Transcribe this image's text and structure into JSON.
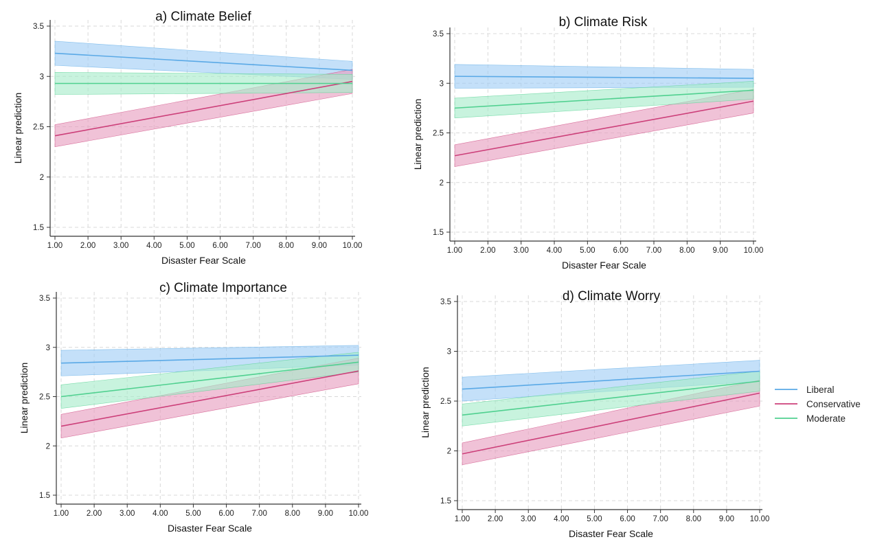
{
  "colors": {
    "liberal": "#5aa9e6",
    "liberal_fill": "#9fcdf5",
    "conservative": "#cc3f79",
    "conservative_fill": "#e69cbf",
    "moderate": "#4fd08f",
    "moderate_fill": "#a6ecc9",
    "grid": "#d8d8d8",
    "axis": "#333333"
  },
  "legend": {
    "items": [
      {
        "label": "Liberal",
        "series": "liberal"
      },
      {
        "label": "Conservative",
        "series": "conservative"
      },
      {
        "label": "Moderate",
        "series": "moderate"
      }
    ]
  },
  "chart_data": [
    {
      "type": "line",
      "title": "a) Climate Belief",
      "xlabel": "Disaster Fear Scale",
      "ylabel": "Linear prediction",
      "x_ticks": [
        "1.00",
        "2.00",
        "3.00",
        "4.00",
        "5.00",
        "6.00",
        "7.00",
        "8.00",
        "9.00",
        "10.00"
      ],
      "y_ticks": [
        "1.5",
        "2",
        "2.5",
        "3",
        "3.5"
      ],
      "xlim": [
        1,
        10
      ],
      "ylim": [
        1.5,
        3.5
      ],
      "grid": true,
      "series": [
        {
          "name": "Liberal",
          "key": "liberal",
          "x": [
            1,
            10
          ],
          "y": [
            3.23,
            3.06
          ],
          "lower": [
            3.11,
            2.97
          ],
          "upper": [
            3.35,
            3.15
          ]
        },
        {
          "name": "Conservative",
          "key": "conservative",
          "x": [
            1,
            10
          ],
          "y": [
            2.41,
            2.95
          ],
          "lower": [
            2.3,
            2.83
          ],
          "upper": [
            2.52,
            3.07
          ]
        },
        {
          "name": "Moderate",
          "key": "moderate",
          "x": [
            1,
            10
          ],
          "y": [
            2.93,
            2.93
          ],
          "lower": [
            2.82,
            2.84
          ],
          "upper": [
            3.04,
            3.02
          ]
        }
      ]
    },
    {
      "type": "line",
      "title": "b) Climate Risk",
      "xlabel": "Disaster Fear Scale",
      "ylabel": "Linear prediction",
      "x_ticks": [
        "1.00",
        "2.00",
        "3.00",
        "4.00",
        "5.00",
        "6.00",
        "7.00",
        "8.00",
        "9.00",
        "10.00"
      ],
      "y_ticks": [
        "1.5",
        "2",
        "2.5",
        "3",
        "3.5"
      ],
      "xlim": [
        1,
        10
      ],
      "ylim": [
        1.5,
        3.5
      ],
      "grid": true,
      "series": [
        {
          "name": "Liberal",
          "key": "liberal",
          "x": [
            1,
            10
          ],
          "y": [
            3.07,
            3.05
          ],
          "lower": [
            2.95,
            2.96
          ],
          "upper": [
            3.19,
            3.14
          ]
        },
        {
          "name": "Conservative",
          "key": "conservative",
          "x": [
            1,
            10
          ],
          "y": [
            2.27,
            2.82
          ],
          "lower": [
            2.16,
            2.7
          ],
          "upper": [
            2.38,
            2.94
          ]
        },
        {
          "name": "Moderate",
          "key": "moderate",
          "x": [
            1,
            10
          ],
          "y": [
            2.75,
            2.93
          ],
          "lower": [
            2.65,
            2.84
          ],
          "upper": [
            2.85,
            3.02
          ]
        }
      ]
    },
    {
      "type": "line",
      "title": "c) Climate Importance",
      "xlabel": "Disaster Fear Scale",
      "ylabel": "Linear prediction",
      "x_ticks": [
        "1.00",
        "2.00",
        "3.00",
        "4.00",
        "5.00",
        "6.00",
        "7.00",
        "8.00",
        "9.00",
        "10.00"
      ],
      "y_ticks": [
        "1.5",
        "2",
        "2.5",
        "3",
        "3.5"
      ],
      "xlim": [
        1,
        10
      ],
      "ylim": [
        1.5,
        3.5
      ],
      "grid": true,
      "series": [
        {
          "name": "Liberal",
          "key": "liberal",
          "x": [
            1,
            10
          ],
          "y": [
            2.84,
            2.92
          ],
          "lower": [
            2.71,
            2.82
          ],
          "upper": [
            2.97,
            3.02
          ]
        },
        {
          "name": "Conservative",
          "key": "conservative",
          "x": [
            1,
            10
          ],
          "y": [
            2.2,
            2.76
          ],
          "lower": [
            2.08,
            2.63
          ],
          "upper": [
            2.32,
            2.89
          ]
        },
        {
          "name": "Moderate",
          "key": "moderate",
          "x": [
            1,
            10
          ],
          "y": [
            2.5,
            2.85
          ],
          "lower": [
            2.38,
            2.75
          ],
          "upper": [
            2.62,
            2.95
          ]
        }
      ]
    },
    {
      "type": "line",
      "title": "d) Climate Worry",
      "xlabel": "Disaster Fear Scale",
      "ylabel": "Linear prediction",
      "x_ticks": [
        "1.00",
        "2.00",
        "3.00",
        "4.00",
        "5.00",
        "6.00",
        "7.00",
        "8.00",
        "9.00",
        "10.00"
      ],
      "y_ticks": [
        "1.5",
        "2",
        "2.5",
        "3",
        "3.5"
      ],
      "xlim": [
        1,
        10
      ],
      "ylim": [
        1.5,
        3.5
      ],
      "grid": true,
      "series": [
        {
          "name": "Liberal",
          "key": "liberal",
          "x": [
            1,
            10
          ],
          "y": [
            2.62,
            2.8
          ],
          "lower": [
            2.5,
            2.7
          ],
          "upper": [
            2.74,
            2.91
          ]
        },
        {
          "name": "Conservative",
          "key": "conservative",
          "x": [
            1,
            10
          ],
          "y": [
            1.97,
            2.58
          ],
          "lower": [
            1.86,
            2.45
          ],
          "upper": [
            2.08,
            2.71
          ]
        },
        {
          "name": "Moderate",
          "key": "moderate",
          "x": [
            1,
            10
          ],
          "y": [
            2.36,
            2.7
          ],
          "lower": [
            2.25,
            2.6
          ],
          "upper": [
            2.47,
            2.8
          ]
        }
      ]
    }
  ]
}
